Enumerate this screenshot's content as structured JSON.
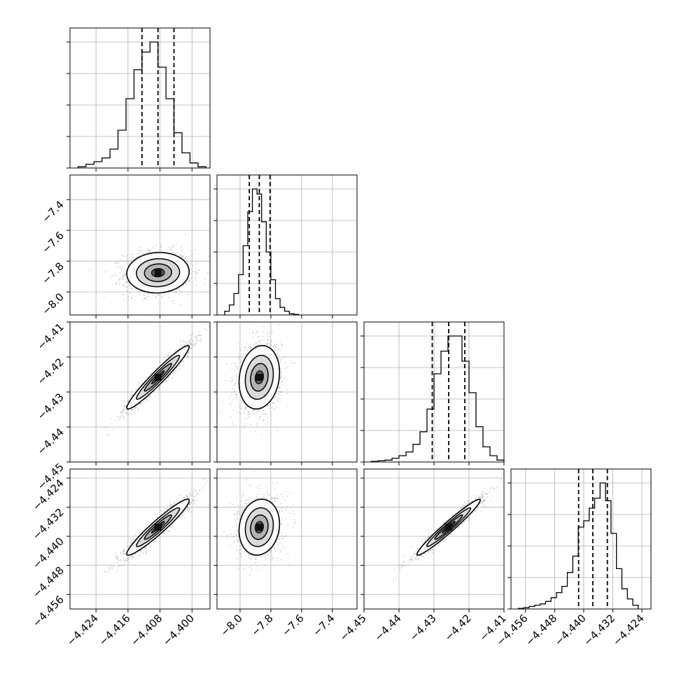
{
  "chart_data": {
    "type": "corner",
    "title": "",
    "parameters": [
      {
        "range": [
          -4.4305,
          -4.3955
        ],
        "ticks": [
          -4.424,
          -4.416,
          -4.408,
          -4.4
        ],
        "tick_labels": [
          "−4.424",
          "−4.416",
          "−4.408",
          "−4.400"
        ],
        "quantiles": [
          -4.4125,
          -4.4085,
          -4.4045
        ],
        "histogram": {
          "edges": [
            -4.4285,
            -4.4265,
            -4.4245,
            -4.4225,
            -4.4205,
            -4.4185,
            -4.4165,
            -4.4145,
            -4.4125,
            -4.4105,
            -4.4085,
            -4.4065,
            -4.4045,
            -4.4025,
            -4.4005,
            -4.3985,
            -4.3965
          ],
          "counts": [
            0.01,
            0.03,
            0.05,
            0.08,
            0.15,
            0.3,
            0.55,
            0.78,
            0.92,
            1.0,
            0.8,
            0.55,
            0.28,
            0.12,
            0.04,
            0.01
          ]
        }
      },
      {
        "range": [
          -8.15,
          -7.24
        ],
        "ticks": [
          -8.0,
          -7.8,
          -7.6,
          -7.4
        ],
        "tick_labels": [
          "−8.0",
          "−7.8",
          "−7.6",
          "−7.4"
        ],
        "quantiles": [
          -7.94,
          -7.875,
          -7.805
        ],
        "histogram": {
          "edges": [
            -8.1,
            -8.07,
            -8.04,
            -8.01,
            -7.98,
            -7.95,
            -7.92,
            -7.89,
            -7.86,
            -7.83,
            -7.8,
            -7.77,
            -7.74,
            -7.71,
            -7.68,
            -7.65,
            -7.62
          ],
          "counts": [
            0.03,
            0.08,
            0.17,
            0.32,
            0.55,
            0.82,
            1.0,
            0.96,
            0.74,
            0.5,
            0.28,
            0.13,
            0.06,
            0.03,
            0.01,
            0.005
          ]
        }
      },
      {
        "range": [
          -4.45,
          -4.41
        ],
        "ticks": [
          -4.45,
          -4.44,
          -4.43,
          -4.42,
          -4.41
        ],
        "tick_labels": [
          "−4.45",
          "−4.44",
          "−4.43",
          "−4.42",
          "−4.41"
        ],
        "quantiles": [
          -4.4305,
          -4.4258,
          -4.4212
        ],
        "histogram": {
          "edges": [
            -4.448,
            -4.446,
            -4.444,
            -4.442,
            -4.44,
            -4.438,
            -4.436,
            -4.434,
            -4.432,
            -4.43,
            -4.428,
            -4.426,
            -4.424,
            -4.422,
            -4.42,
            -4.418,
            -4.416,
            -4.414,
            -4.412,
            -4.41
          ],
          "counts": [
            0.005,
            0.01,
            0.015,
            0.03,
            0.05,
            0.08,
            0.14,
            0.24,
            0.42,
            0.7,
            0.88,
            1.0,
            1.0,
            0.8,
            0.55,
            0.28,
            0.12,
            0.05,
            0.015
          ]
        }
      },
      {
        "range": [
          -4.46,
          -4.4215
        ],
        "ticks": [
          -4.456,
          -4.448,
          -4.44,
          -4.432,
          -4.424
        ],
        "tick_labels": [
          "−4.456",
          "−4.448",
          "−4.440",
          "−4.432",
          "−4.424"
        ],
        "quantiles": [
          -4.4414,
          -4.4375,
          -4.4335
        ],
        "histogram": {
          "edges": [
            -4.458,
            -4.4565,
            -4.455,
            -4.4535,
            -4.452,
            -4.4505,
            -4.449,
            -4.4475,
            -4.446,
            -4.4445,
            -4.443,
            -4.4415,
            -4.44,
            -4.4385,
            -4.437,
            -4.4355,
            -4.434,
            -4.4325,
            -4.431,
            -4.4295,
            -4.428,
            -4.4265,
            -4.425
          ],
          "counts": [
            0.005,
            0.01,
            0.02,
            0.03,
            0.04,
            0.06,
            0.09,
            0.13,
            0.18,
            0.29,
            0.42,
            0.65,
            0.7,
            0.8,
            0.88,
            1.0,
            0.86,
            0.6,
            0.32,
            0.16,
            0.08,
            0.03
          ]
        }
      }
    ],
    "correlations": {
      "1-0": 0.05,
      "2-0": 0.96,
      "2-1": 0.15,
      "3-0": 0.95,
      "3-1": 0.12,
      "3-2": 0.97
    },
    "grid": true,
    "colors": {
      "line": "#000000",
      "scatter": "#9a9a9a",
      "grid": "#b0b0b0"
    }
  }
}
